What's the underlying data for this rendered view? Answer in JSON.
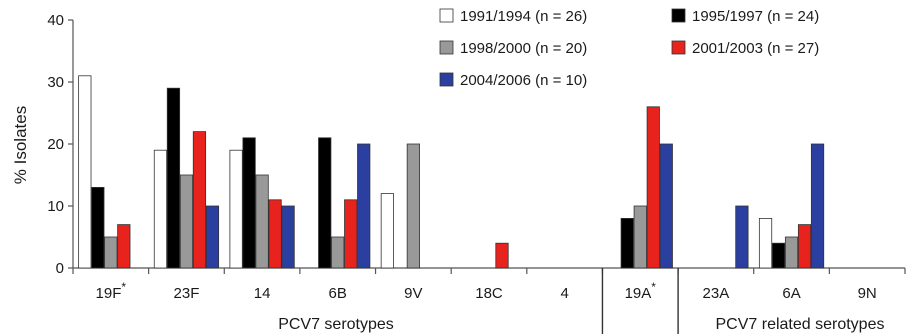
{
  "chart_data": {
    "type": "bar",
    "ylabel": "% Isolates",
    "ylim": [
      0,
      40
    ],
    "yticks": [
      0,
      10,
      20,
      30,
      40
    ],
    "grid": false,
    "legend_position": "top-right",
    "categories": [
      "19F*",
      "23F",
      "14",
      "6B",
      "9V",
      "18C",
      "4",
      "19A*",
      "23A",
      "6A",
      "9N"
    ],
    "groups": [
      {
        "label": "PCV7 serotypes",
        "categories": [
          "19F*",
          "23F",
          "14",
          "6B",
          "9V",
          "18C",
          "4"
        ]
      },
      {
        "label": "PCV7 related serotypes",
        "categories": [
          "23A",
          "6A",
          "9N"
        ]
      }
    ],
    "series": [
      {
        "name": "1991/1994 (n = 26)",
        "color": "#ffffff",
        "values": [
          31,
          19,
          19,
          0,
          12,
          0,
          0,
          0,
          0,
          8,
          0
        ]
      },
      {
        "name": "1995/1997 (n = 24)",
        "color": "#000000",
        "values": [
          13,
          29,
          21,
          21,
          0,
          0,
          0,
          8,
          0,
          4,
          0
        ]
      },
      {
        "name": "1998/2000 (n = 20)",
        "color": "#999999",
        "values": [
          5,
          15,
          15,
          5,
          20,
          0,
          0,
          10,
          0,
          5,
          0
        ]
      },
      {
        "name": "2001/2003 (n = 27)",
        "color": "#e8221c",
        "values": [
          7,
          22,
          11,
          11,
          0,
          4,
          0,
          26,
          0,
          7,
          0
        ]
      },
      {
        "name": "2004/2006 (n = 10)",
        "color": "#2b3fa0",
        "values": [
          0,
          10,
          10,
          20,
          0,
          0,
          0,
          20,
          10,
          20,
          0
        ]
      }
    ]
  }
}
